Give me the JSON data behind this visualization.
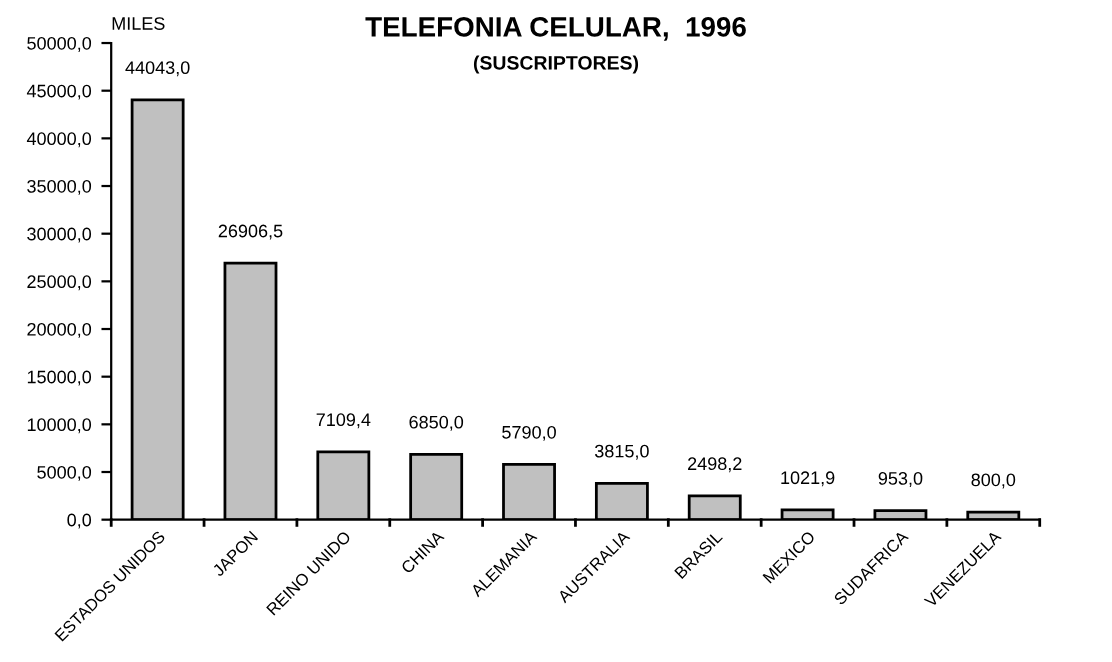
{
  "chart_data": {
    "type": "bar",
    "title": "TELEFONIA CELULAR,  1996",
    "subtitle": "(SUSCRIPTORES)",
    "ylabel": "MILES",
    "categories": [
      "ESTADOS UNIDOS",
      "JAPON",
      "REINO UNIDO",
      "CHINA",
      "ALEMANIA",
      "AUSTRALIA",
      "BRASIL",
      "MEXICO",
      "SUDAFRICA",
      "VENEZUELA"
    ],
    "values": [
      44043.0,
      26906.5,
      7109.4,
      6850.0,
      5790.0,
      3815.0,
      2498.2,
      1021.9,
      953.0,
      800.0
    ],
    "value_labels": [
      "44043,0",
      "26906,5",
      "7109,4",
      "6850,0",
      "5790,0",
      "3815,0",
      "2498,2",
      "1021,9",
      "953,0",
      "800,0"
    ],
    "color": "#c0c0c0",
    "ylim": [
      0,
      50000
    ],
    "yticks": [
      {
        "value": 0,
        "label": "0,0"
      },
      {
        "value": 5000,
        "label": "5000,0"
      },
      {
        "value": 10000,
        "label": "10000,0"
      },
      {
        "value": 15000,
        "label": "15000,0"
      },
      {
        "value": 20000,
        "label": "20000,0"
      },
      {
        "value": 25000,
        "label": "25000,0"
      },
      {
        "value": 30000,
        "label": "30000,0"
      },
      {
        "value": 35000,
        "label": "35000,0"
      },
      {
        "value": 40000,
        "label": "40000,0"
      },
      {
        "value": 45000,
        "label": "45000,0"
      },
      {
        "value": 50000,
        "label": "50000,0"
      }
    ],
    "grid": false
  }
}
